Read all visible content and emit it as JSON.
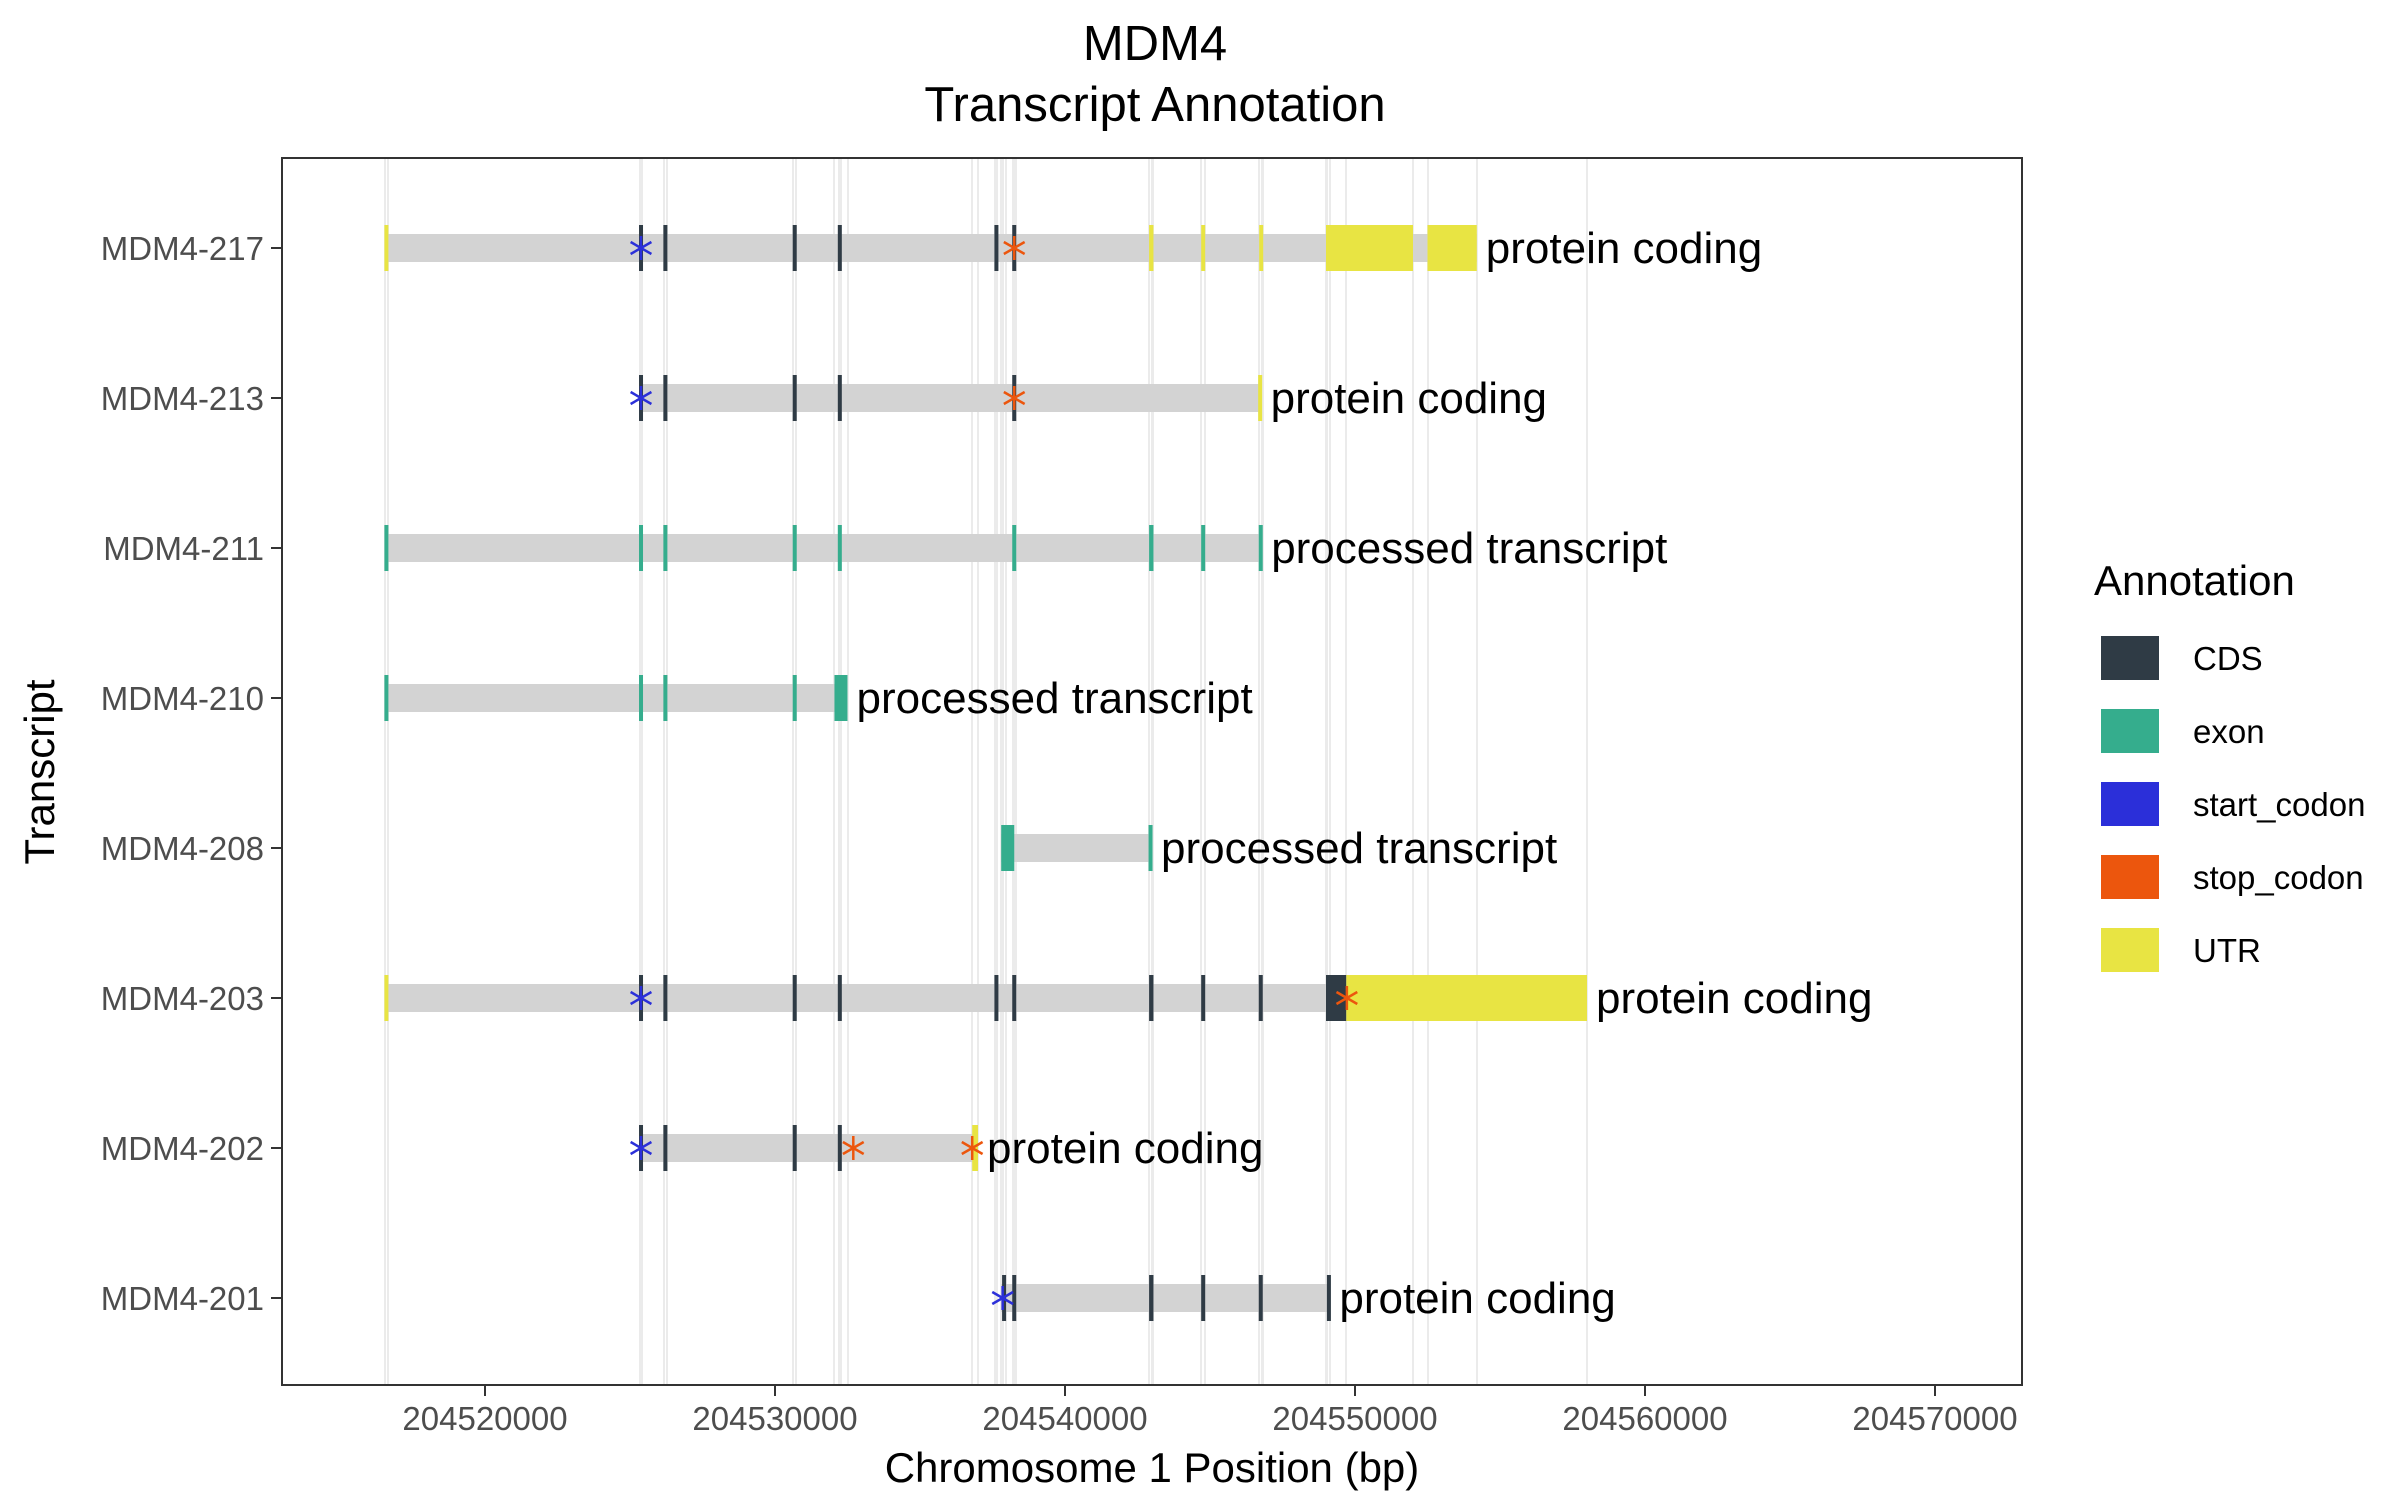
{
  "chart_data": {
    "type": "gene-track",
    "title_lines": [
      "MDM4",
      "Transcript Annotation"
    ],
    "xlabel": "Chromosome 1 Position (bp)",
    "ylabel": "Transcript",
    "xlim": [
      204513000,
      204573000
    ],
    "x_ticks": [
      204520000,
      204530000,
      204540000,
      204550000,
      204560000,
      204570000
    ],
    "grid": true,
    "legend": {
      "title": "Annotation",
      "position": "right",
      "entries": [
        {
          "key": "CDS",
          "label": "CDS",
          "color": "#2f3b45"
        },
        {
          "key": "exon",
          "label": "exon",
          "color": "#35ad8d"
        },
        {
          "key": "start_codon",
          "label": "start_codon",
          "color": "#2b2fd9"
        },
        {
          "key": "stop_codon",
          "label": "stop_codon",
          "color": "#ec560d"
        },
        {
          "key": "UTR",
          "label": "UTR",
          "color": "#e8e443"
        }
      ]
    },
    "intron_color": "#d3d3d3",
    "transcripts": [
      {
        "name": "MDM4-217",
        "biotype": "protein coding",
        "start": 204516600,
        "end": 204554200,
        "features": [
          {
            "type": "UTR",
            "start": 204516550,
            "end": 204516650
          },
          {
            "type": "CDS",
            "start": 204525330,
            "end": 204525430
          },
          {
            "type": "CDS",
            "start": 204526170,
            "end": 204526270
          },
          {
            "type": "CDS",
            "start": 204530630,
            "end": 204530730
          },
          {
            "type": "CDS",
            "start": 204532200,
            "end": 204532270
          },
          {
            "type": "CDS",
            "start": 204537600,
            "end": 204537670
          },
          {
            "type": "CDS",
            "start": 204538200,
            "end": 204538300
          },
          {
            "type": "UTR",
            "start": 204542900,
            "end": 204543050
          },
          {
            "type": "UTR",
            "start": 204544700,
            "end": 204544830
          },
          {
            "type": "UTR",
            "start": 204546700,
            "end": 204546830
          },
          {
            "type": "UTR",
            "start": 204549000,
            "end": 204552000
          },
          {
            "type": "UTR",
            "start": 204552500,
            "end": 204554200
          },
          {
            "type": "start_codon",
            "start": 204525380,
            "end": 204525380
          },
          {
            "type": "stop_codon",
            "start": 204538250,
            "end": 204538250
          }
        ]
      },
      {
        "name": "MDM4-213",
        "biotype": "protein coding",
        "start": 204525380,
        "end": 204546750,
        "features": [
          {
            "type": "CDS",
            "start": 204525330,
            "end": 204525430
          },
          {
            "type": "CDS",
            "start": 204526170,
            "end": 204526270
          },
          {
            "type": "CDS",
            "start": 204530630,
            "end": 204530730
          },
          {
            "type": "CDS",
            "start": 204532200,
            "end": 204532270
          },
          {
            "type": "CDS",
            "start": 204538200,
            "end": 204538300
          },
          {
            "type": "UTR",
            "start": 204546680,
            "end": 204546780
          },
          {
            "type": "start_codon",
            "start": 204525380,
            "end": 204525380
          },
          {
            "type": "stop_codon",
            "start": 204538250,
            "end": 204538250
          }
        ]
      },
      {
        "name": "MDM4-211",
        "biotype": "processed transcript",
        "start": 204516600,
        "end": 204546750,
        "features": [
          {
            "type": "exon",
            "start": 204516560,
            "end": 204516640
          },
          {
            "type": "exon",
            "start": 204525330,
            "end": 204525430
          },
          {
            "type": "exon",
            "start": 204526170,
            "end": 204526270
          },
          {
            "type": "exon",
            "start": 204530630,
            "end": 204530730
          },
          {
            "type": "exon",
            "start": 204532200,
            "end": 204532270
          },
          {
            "type": "exon",
            "start": 204538200,
            "end": 204538300
          },
          {
            "type": "exon",
            "start": 204542900,
            "end": 204543050
          },
          {
            "type": "exon",
            "start": 204544700,
            "end": 204544830
          },
          {
            "type": "exon",
            "start": 204546700,
            "end": 204546800
          }
        ]
      },
      {
        "name": "MDM4-210",
        "biotype": "processed transcript",
        "start": 204516600,
        "end": 204532400,
        "features": [
          {
            "type": "exon",
            "start": 204516560,
            "end": 204516640
          },
          {
            "type": "exon",
            "start": 204525330,
            "end": 204525430
          },
          {
            "type": "exon",
            "start": 204526170,
            "end": 204526270
          },
          {
            "type": "exon",
            "start": 204530630,
            "end": 204530730
          },
          {
            "type": "exon",
            "start": 204532050,
            "end": 204532500
          }
        ]
      },
      {
        "name": "MDM4-208",
        "biotype": "processed transcript",
        "start": 204537800,
        "end": 204543000,
        "features": [
          {
            "type": "exon",
            "start": 204537800,
            "end": 204538250
          },
          {
            "type": "exon",
            "start": 204542900,
            "end": 204543000
          }
        ]
      },
      {
        "name": "MDM4-203",
        "biotype": "protein coding",
        "start": 204516600,
        "end": 204558000,
        "features": [
          {
            "type": "UTR",
            "start": 204516550,
            "end": 204516650
          },
          {
            "type": "CDS",
            "start": 204525330,
            "end": 204525430
          },
          {
            "type": "CDS",
            "start": 204526170,
            "end": 204526270
          },
          {
            "type": "CDS",
            "start": 204530630,
            "end": 204530730
          },
          {
            "type": "CDS",
            "start": 204532200,
            "end": 204532270
          },
          {
            "type": "CDS",
            "start": 204537600,
            "end": 204537670
          },
          {
            "type": "CDS",
            "start": 204538200,
            "end": 204538300
          },
          {
            "type": "CDS",
            "start": 204542900,
            "end": 204543050
          },
          {
            "type": "CDS",
            "start": 204544700,
            "end": 204544830
          },
          {
            "type": "CDS",
            "start": 204546700,
            "end": 204546800
          },
          {
            "type": "CDS",
            "start": 204549000,
            "end": 204549700
          },
          {
            "type": "UTR",
            "start": 204549700,
            "end": 204558000
          },
          {
            "type": "start_codon",
            "start": 204525380,
            "end": 204525380
          },
          {
            "type": "stop_codon",
            "start": 204549720,
            "end": 204549720
          }
        ]
      },
      {
        "name": "MDM4-202",
        "biotype": "protein coding",
        "start": 204525380,
        "end": 204537000,
        "features": [
          {
            "type": "CDS",
            "start": 204525330,
            "end": 204525430
          },
          {
            "type": "CDS",
            "start": 204526170,
            "end": 204526270
          },
          {
            "type": "CDS",
            "start": 204530630,
            "end": 204530730
          },
          {
            "type": "CDS",
            "start": 204532200,
            "end": 204532270
          },
          {
            "type": "UTR",
            "start": 204536800,
            "end": 204537000
          },
          {
            "type": "start_codon",
            "start": 204525380,
            "end": 204525380
          },
          {
            "type": "stop_codon",
            "start": 204532700,
            "end": 204532700
          },
          {
            "type": "stop_codon",
            "start": 204536800,
            "end": 204536800
          }
        ]
      },
      {
        "name": "MDM4-201",
        "biotype": "protein coding",
        "start": 204537800,
        "end": 204549100,
        "features": [
          {
            "type": "CDS",
            "start": 204537850,
            "end": 204537950
          },
          {
            "type": "CDS",
            "start": 204538200,
            "end": 204538300
          },
          {
            "type": "CDS",
            "start": 204542900,
            "end": 204543050
          },
          {
            "type": "CDS",
            "start": 204544700,
            "end": 204544830
          },
          {
            "type": "CDS",
            "start": 204546700,
            "end": 204546800
          },
          {
            "type": "CDS",
            "start": 204549050,
            "end": 204549150
          },
          {
            "type": "start_codon",
            "start": 204537850,
            "end": 204537850
          }
        ]
      }
    ]
  }
}
